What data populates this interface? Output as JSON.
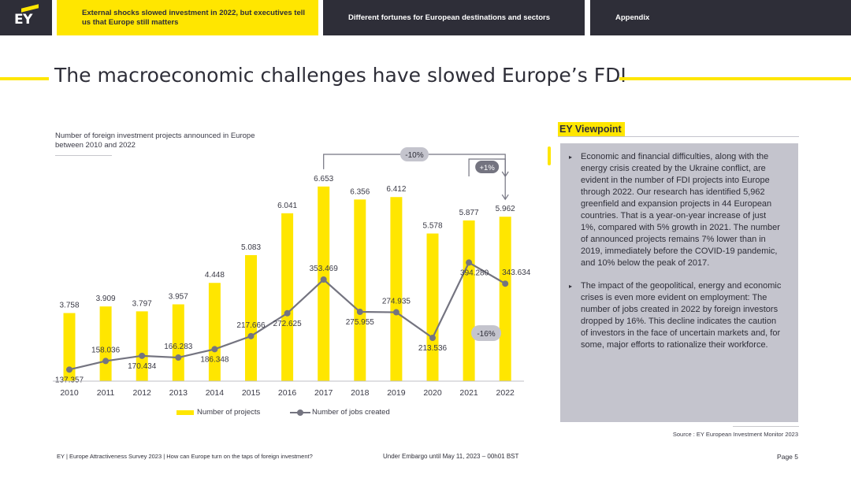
{
  "nav": {
    "logo": "EY",
    "tabs": [
      "External shocks slowed investment in 2022, but executives tell us that Europe still matters",
      "Different fortunes for European destinations and sectors",
      "Appendix"
    ]
  },
  "title": "The macroeconomic challenges have slowed Europe’s FDI",
  "chart_caption": "Number of foreign investment projects announced in Europe between 2010 and 2022",
  "chart_data": {
    "type": "bar",
    "categories": [
      "2010",
      "2011",
      "2012",
      "2013",
      "2014",
      "2015",
      "2016",
      "2017",
      "2018",
      "2019",
      "2020",
      "2021",
      "2022"
    ],
    "series": [
      {
        "name": "Number of projects",
        "type": "bar",
        "color": "#ffe600",
        "values": [
          3758,
          3909,
          3797,
          3957,
          4448,
          5083,
          6041,
          6653,
          6356,
          6412,
          5578,
          5877,
          5962
        ],
        "labels": [
          "3.758",
          "3.909",
          "3.797",
          "3.957",
          "4.448",
          "5.083",
          "6.041",
          "6.653",
          "6.356",
          "6.412",
          "5.578",
          "5.877",
          "5.962"
        ]
      },
      {
        "name": "Number of jobs created",
        "type": "line",
        "color": "#747480",
        "values": [
          137357,
          158036,
          170434,
          166283,
          186348,
          217666,
          272625,
          353469,
          275955,
          274935,
          213536,
          394280,
          343634
        ],
        "labels": [
          "137.357",
          "158.036",
          "170.434",
          "166.283",
          "186.348",
          "217.666",
          "272.625",
          "353.469",
          "275.955",
          "274.935",
          "213.536",
          "394.280",
          "343.634"
        ]
      }
    ],
    "annotations": [
      "-10%",
      "+1%",
      "-16%"
    ]
  },
  "legend": {
    "bars": "Number of projects",
    "line": "Number of jobs created"
  },
  "viewpoint": {
    "heading": "EY Viewpoint",
    "bullets": [
      "Economic and financial difficulties, along with the energy crisis created by the Ukraine conflict, are evident in the number of FDI projects into Europe through 2022. Our research has identified 5,962 greenfield and expansion projects in 44 European countries. That is a year-on-year increase of just 1%, compared with 5% growth in 2021. The number of announced projects remains 7% lower than in 2019, immediately before the COVID-19 pandemic, and 10% below the peak of 2017.",
      "The impact of the geopolitical, energy and economic crises is even more evident on employment: The number of jobs created in 2022 by foreign investors dropped by 16%. This decline indicates the caution of investors in the face of uncertain markets and, for some, major efforts to rationalize their workforce."
    ]
  },
  "source": "Source : EY European Investment Monitor 2023",
  "footer": {
    "left": "EY | Europe Attractiveness Survey 2023 | How can Europe turn on the taps of foreign investment?",
    "middle": "Under Embargo until May 11, 2023 – 00h01 BST",
    "page": "Page 5"
  }
}
